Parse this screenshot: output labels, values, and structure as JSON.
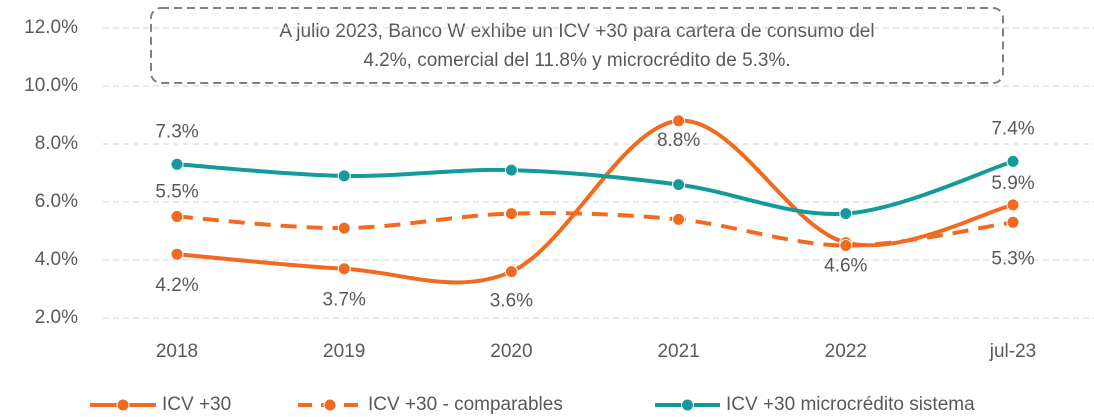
{
  "chart_data": {
    "type": "line",
    "annotation": [
      "A julio 2023, Banco W exhibe un ICV +30 para cartera de consumo del",
      "4.2%, comercial del 11.8% y microcrédito de 5.3%."
    ],
    "categories": [
      "2018",
      "2019",
      "2020",
      "2021",
      "2022",
      "jul-23"
    ],
    "series": [
      {
        "name": "ICV +30",
        "color": "#f26a1f",
        "dashed": false,
        "smooth": true,
        "values": [
          4.2,
          3.7,
          3.6,
          8.8,
          4.6,
          5.9
        ],
        "value_labels": [
          "4.2%",
          "3.7%",
          "3.6%",
          "8.8%",
          "4.6%",
          "5.9%"
        ]
      },
      {
        "name": "ICV +30 - comparables",
        "color": "#f26a1f",
        "dashed": true,
        "smooth": true,
        "values": [
          5.5,
          5.1,
          5.6,
          5.4,
          4.5,
          5.3
        ],
        "value_labels": [
          "5.5%",
          null,
          null,
          null,
          null,
          "5.3%"
        ]
      },
      {
        "name": "ICV +30 microcrédito sistema",
        "color": "#149a9b",
        "dashed": false,
        "smooth": true,
        "values": [
          7.3,
          6.9,
          7.1,
          6.6,
          5.6,
          7.4
        ],
        "value_labels": [
          "7.3%",
          null,
          null,
          null,
          null,
          "7.4%"
        ]
      }
    ],
    "ylim": [
      2,
      12
    ],
    "yticks": [
      {
        "value": 2,
        "label": "2.0%"
      },
      {
        "value": 4,
        "label": "4.0%"
      },
      {
        "value": 6,
        "label": "6.0%"
      },
      {
        "value": 8,
        "label": "8.0%"
      },
      {
        "value": 10,
        "label": "10.0%"
      },
      {
        "value": 12,
        "label": "12.0%"
      }
    ],
    "grid": true,
    "legend": "bottom"
  }
}
